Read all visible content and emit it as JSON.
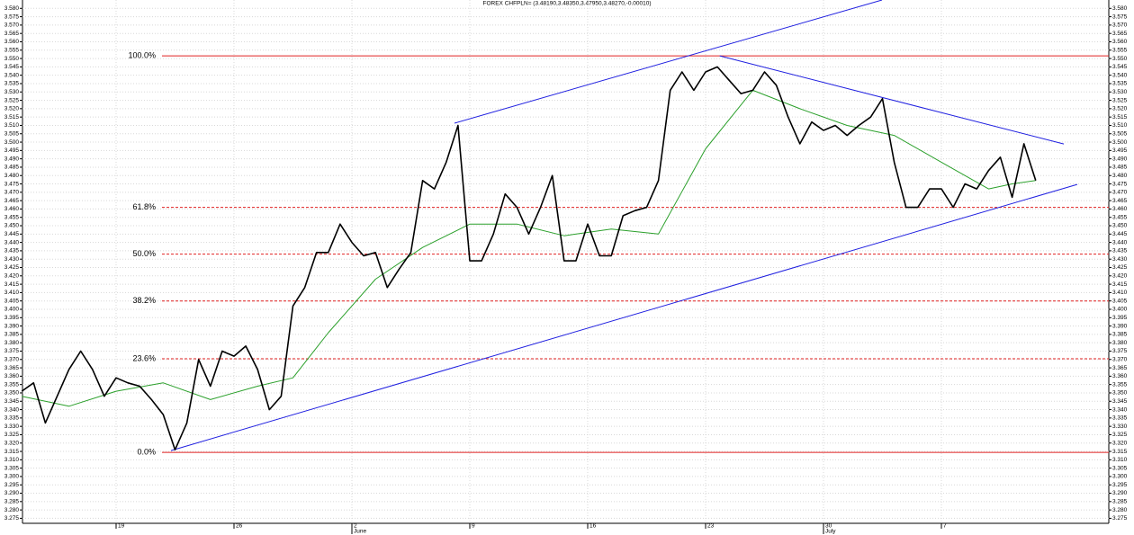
{
  "chart_data": {
    "type": "line",
    "title": "FOREX CHFPLN= (3.48190,3.48350,3.47950,3.48270,-0.00010)",
    "xlim": [
      0,
      45.5
    ],
    "ylim": [
      3.272,
      3.585
    ],
    "grid": true,
    "xticks": [
      {
        "value": 4,
        "label": "19"
      },
      {
        "value": 9,
        "label": "26"
      },
      {
        "value": 14,
        "label": "2"
      },
      {
        "value": 19,
        "label": "9"
      },
      {
        "value": 24,
        "label": "16"
      },
      {
        "value": 29,
        "label": "23"
      },
      {
        "value": 34,
        "label": "30"
      },
      {
        "value": 39,
        "label": "7"
      }
    ],
    "months": [
      {
        "value": 14,
        "label": "June"
      },
      {
        "value": 34,
        "label": "July"
      }
    ],
    "yticks": [
      {
        "value": 3.275,
        "label": "3.275"
      },
      {
        "value": 3.28,
        "label": "3.280"
      },
      {
        "value": 3.285,
        "label": "3.285"
      },
      {
        "value": 3.29,
        "label": "3.290"
      },
      {
        "value": 3.295,
        "label": "3.295"
      },
      {
        "value": 3.3,
        "label": "3.300"
      },
      {
        "value": 3.305,
        "label": "3.305"
      },
      {
        "value": 3.31,
        "label": "3.310"
      },
      {
        "value": 3.315,
        "label": "3.315"
      },
      {
        "value": 3.32,
        "label": "3.320"
      },
      {
        "value": 3.325,
        "label": "3.325"
      },
      {
        "value": 3.33,
        "label": "3.330"
      },
      {
        "value": 3.335,
        "label": "3.335"
      },
      {
        "value": 3.34,
        "label": "3.340"
      },
      {
        "value": 3.345,
        "label": "3.345"
      },
      {
        "value": 3.35,
        "label": "3.350"
      },
      {
        "value": 3.355,
        "label": "3.355"
      },
      {
        "value": 3.36,
        "label": "3.360"
      },
      {
        "value": 3.365,
        "label": "3.365"
      },
      {
        "value": 3.37,
        "label": "3.370"
      },
      {
        "value": 3.375,
        "label": "3.375"
      },
      {
        "value": 3.38,
        "label": "3.380"
      },
      {
        "value": 3.385,
        "label": "3.385"
      },
      {
        "value": 3.39,
        "label": "3.390"
      },
      {
        "value": 3.395,
        "label": "3.395"
      },
      {
        "value": 3.4,
        "label": "3.400"
      },
      {
        "value": 3.405,
        "label": "3.405"
      },
      {
        "value": 3.41,
        "label": "3.410"
      },
      {
        "value": 3.415,
        "label": "3.415"
      },
      {
        "value": 3.42,
        "label": "3.420"
      },
      {
        "value": 3.425,
        "label": "3.425"
      },
      {
        "value": 3.43,
        "label": "3.430"
      },
      {
        "value": 3.435,
        "label": "3.435"
      },
      {
        "value": 3.44,
        "label": "3.440"
      },
      {
        "value": 3.445,
        "label": "3.445"
      },
      {
        "value": 3.45,
        "label": "3.450"
      },
      {
        "value": 3.455,
        "label": "3.455"
      },
      {
        "value": 3.46,
        "label": "3.460"
      },
      {
        "value": 3.465,
        "label": "3.465"
      },
      {
        "value": 3.47,
        "label": "3.470"
      },
      {
        "value": 3.475,
        "label": "3.475"
      },
      {
        "value": 3.48,
        "label": "3.480"
      },
      {
        "value": 3.485,
        "label": "3.485"
      },
      {
        "value": 3.49,
        "label": "3.490"
      },
      {
        "value": 3.495,
        "label": "3.495"
      },
      {
        "value": 3.5,
        "label": "3.500"
      },
      {
        "value": 3.505,
        "label": "3.505"
      },
      {
        "value": 3.51,
        "label": "3.510"
      },
      {
        "value": 3.515,
        "label": "3.515"
      },
      {
        "value": 3.52,
        "label": "3.520"
      },
      {
        "value": 3.525,
        "label": "3.525"
      },
      {
        "value": 3.53,
        "label": "3.530"
      },
      {
        "value": 3.535,
        "label": "3.535"
      },
      {
        "value": 3.54,
        "label": "3.540"
      },
      {
        "value": 3.545,
        "label": "3.545"
      },
      {
        "value": 3.55,
        "label": "3.550"
      },
      {
        "value": 3.555,
        "label": "3.555"
      },
      {
        "value": 3.56,
        "label": "3.560"
      },
      {
        "value": 3.565,
        "label": "3.565"
      },
      {
        "value": 3.57,
        "label": "3.570"
      },
      {
        "value": 3.575,
        "label": "3.575"
      },
      {
        "value": 3.58,
        "label": "3.580"
      }
    ],
    "series": [
      {
        "color": "#000000",
        "x": [
          0,
          0.5,
          1,
          1.5,
          2,
          2.5,
          3,
          3.5,
          4,
          4.5,
          5,
          5.5,
          6,
          6.5,
          7,
          7.5,
          8,
          8.5,
          9,
          9.5,
          10,
          10.5,
          11,
          11.5,
          12,
          12.5,
          13,
          13.5,
          14,
          14.5,
          15,
          15.5,
          16,
          16.5,
          17,
          17.5,
          18,
          18.5,
          19,
          19.5,
          20,
          20.5,
          21,
          21.5,
          22,
          22.5,
          23,
          23.5,
          24,
          24.5,
          25,
          25.5,
          26,
          26.5,
          27,
          27.5,
          28,
          28.5,
          29,
          29.5,
          30,
          30.5,
          31,
          31.5,
          32,
          32.5,
          33,
          33.5,
          34,
          34.5,
          35,
          35.5,
          36,
          36.5,
          37,
          37.5,
          38,
          38.5,
          39,
          39.5,
          40,
          40.5,
          41,
          41.5,
          42,
          42.5,
          43
        ],
        "values": [
          3.351,
          3.356,
          3.332,
          3.348,
          3.364,
          3.375,
          3.364,
          3.348,
          3.359,
          3.356,
          3.354,
          3.346,
          3.337,
          3.316,
          3.332,
          3.37,
          3.354,
          3.375,
          3.372,
          3.378,
          3.364,
          3.34,
          3.348,
          3.402,
          3.413,
          3.434,
          3.434,
          3.451,
          3.44,
          3.432,
          3.434,
          3.413,
          3.424,
          3.434,
          3.477,
          3.472,
          3.488,
          3.51,
          3.429,
          3.429,
          3.445,
          3.469,
          3.461,
          3.445,
          3.461,
          3.48,
          3.429,
          3.429,
          3.451,
          3.432,
          3.432,
          3.456,
          3.459,
          3.461,
          3.477,
          3.531,
          3.542,
          3.531,
          3.542,
          3.545,
          3.537,
          3.529,
          3.531,
          3.542,
          3.534,
          3.515,
          3.499,
          3.512,
          3.507,
          3.51,
          3.504,
          3.51,
          3.515,
          3.526,
          3.488,
          3.461,
          3.461,
          3.472,
          3.472,
          3.461,
          3.475,
          3.472,
          3.483,
          3.491,
          3.467,
          3.499,
          3.477
        ]
      },
      {
        "color": "#2ca02c",
        "x": [
          0,
          2,
          4,
          6,
          8,
          10,
          11.5,
          13,
          15,
          17,
          19,
          21,
          23,
          25,
          27,
          29,
          31,
          33,
          35,
          37,
          39,
          41,
          42,
          43
        ],
        "values": [
          3.348,
          3.342,
          3.351,
          3.356,
          3.346,
          3.354,
          3.359,
          3.386,
          3.418,
          3.437,
          3.451,
          3.451,
          3.444,
          3.448,
          3.445,
          3.496,
          3.531,
          3.52,
          3.51,
          3.504,
          3.488,
          3.472,
          3.475,
          3.477
        ]
      }
    ],
    "trendlines": [
      {
        "color": "#2020e0",
        "x": [
          6.33,
          44.76
        ],
        "y": [
          3.3155,
          3.4747
        ]
      },
      {
        "color": "#2020e0",
        "x": [
          18.35,
          36.48
        ],
        "y": [
          3.5113,
          3.585
        ]
      },
      {
        "color": "#2020e0",
        "x": [
          29.6,
          44.19
        ],
        "y": [
          3.5516,
          3.4989
        ]
      }
    ],
    "fib_color": "#e02020",
    "fib_levels": [
      {
        "label": "100.0%",
        "value": 3.5516,
        "dashed": false
      },
      {
        "label": "61.8%",
        "value": 3.461,
        "dashed": true
      },
      {
        "label": "50.0%",
        "value": 3.433,
        "dashed": true
      },
      {
        "label": "38.2%",
        "value": 3.405,
        "dashed": true
      },
      {
        "label": "23.6%",
        "value": 3.3704,
        "dashed": true
      },
      {
        "label": "0.0%",
        "value": 3.3144,
        "dashed": false
      }
    ]
  }
}
